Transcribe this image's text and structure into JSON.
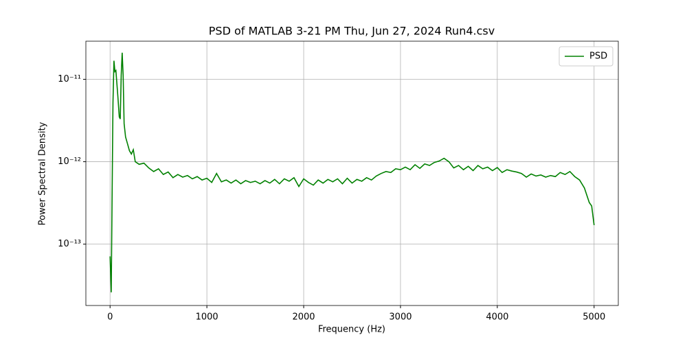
{
  "chart_data": {
    "type": "line",
    "title": "PSD of MATLAB 3-21 PM Thu, Jun 27, 2024 Run4.csv",
    "x_label": "Frequency (Hz)",
    "y_label": "Power Spectral Density",
    "x": [
      0,
      12,
      20,
      30,
      40,
      50,
      60,
      80,
      95,
      105,
      115,
      125,
      135,
      145,
      160,
      180,
      200,
      220,
      240,
      260,
      300,
      350,
      400,
      450,
      500,
      550,
      600,
      650,
      700,
      750,
      800,
      850,
      900,
      950,
      1000,
      1050,
      1100,
      1150,
      1200,
      1250,
      1300,
      1350,
      1400,
      1450,
      1500,
      1550,
      1600,
      1650,
      1700,
      1750,
      1800,
      1850,
      1900,
      1950,
      2000,
      2050,
      2100,
      2150,
      2200,
      2250,
      2300,
      2350,
      2400,
      2450,
      2500,
      2550,
      2600,
      2650,
      2700,
      2750,
      2800,
      2850,
      2900,
      2950,
      3000,
      3050,
      3100,
      3150,
      3200,
      3250,
      3300,
      3350,
      3400,
      3450,
      3500,
      3550,
      3600,
      3650,
      3700,
      3750,
      3800,
      3850,
      3900,
      3950,
      4000,
      4050,
      4100,
      4150,
      4200,
      4250,
      4300,
      4350,
      4400,
      4450,
      4500,
      4550,
      4600,
      4650,
      4700,
      4750,
      4800,
      4850,
      4900,
      4950,
      4975,
      5000
    ],
    "series": [
      {
        "name": "PSD",
        "color": "#008000",
        "values": [
          7.1e-14,
          2.6e-14,
          2.9e-13,
          5.2e-12,
          1.68e-11,
          1.24e-11,
          1.28e-11,
          6.3e-12,
          3.5e-12,
          3.3e-12,
          1.12e-11,
          2.1e-11,
          1.12e-11,
          2.9e-12,
          2e-12,
          1.65e-12,
          1.36e-12,
          1.24e-12,
          1.4e-12,
          1e-12,
          9.3e-13,
          9.6e-13,
          8.4e-13,
          7.6e-13,
          8.2e-13,
          7e-13,
          7.5e-13,
          6.4e-13,
          7e-13,
          6.5e-13,
          6.8e-13,
          6.2e-13,
          6.6e-13,
          6e-13,
          6.3e-13,
          5.6e-13,
          7.2e-13,
          5.7e-13,
          6e-13,
          5.5e-13,
          6e-13,
          5.4e-13,
          5.9e-13,
          5.6e-13,
          5.8e-13,
          5.4e-13,
          5.9e-13,
          5.5e-13,
          6.1e-13,
          5.4e-13,
          6.2e-13,
          5.8e-13,
          6.4e-13,
          5e-13,
          6.2e-13,
          5.6e-13,
          5.2e-13,
          6e-13,
          5.5e-13,
          6.1e-13,
          5.7e-13,
          6.2e-13,
          5.4e-13,
          6.3e-13,
          5.5e-13,
          6.1e-13,
          5.8e-13,
          6.4e-13,
          6e-13,
          6.7e-13,
          7.2e-13,
          7.6e-13,
          7.4e-13,
          8.2e-13,
          8e-13,
          8.6e-13,
          8e-13,
          9.2e-13,
          8.3e-13,
          9.4e-13,
          9e-13,
          9.8e-13,
          1.02e-12,
          1.1e-12,
          1e-12,
          8.4e-13,
          9e-13,
          8e-13,
          8.8e-13,
          7.8e-13,
          9e-13,
          8.2e-13,
          8.6e-13,
          7.8e-13,
          8.5e-13,
          7.4e-13,
          8e-13,
          7.7e-13,
          7.5e-13,
          7.2e-13,
          6.5e-13,
          7.1e-13,
          6.7e-13,
          6.9e-13,
          6.5e-13,
          6.8e-13,
          6.6e-13,
          7.4e-13,
          7e-13,
          7.6e-13,
          6.6e-13,
          6e-13,
          4.8e-13,
          3.2e-13,
          2.9e-13,
          1.7e-13
        ]
      }
    ],
    "xlim": [
      -250,
      5250
    ],
    "xticks": [
      0,
      1000,
      2000,
      3000,
      4000,
      5000
    ],
    "ylim": [
      1.8e-14,
      2.9e-11
    ],
    "yscale": "log",
    "yticks": [
      {
        "value": 1e-13,
        "label": "10⁻¹³"
      },
      {
        "value": 1e-12,
        "label": "10⁻¹²"
      },
      {
        "value": 1e-11,
        "label": "10⁻¹¹"
      }
    ],
    "grid": true,
    "legend": "upper right"
  }
}
